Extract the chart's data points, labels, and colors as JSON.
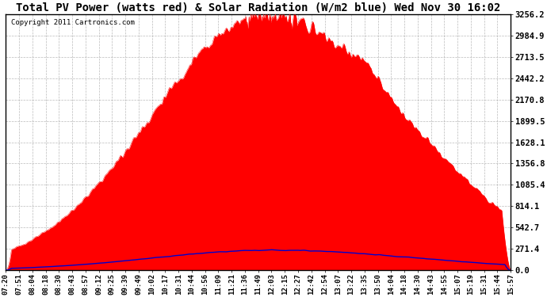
{
  "title": "Total PV Power (watts red) & Solar Radiation (W/m2 blue) Wed Nov 30 16:02",
  "copyright_text": "Copyright 2011 Cartronics.com",
  "ymax": 3256.2,
  "yticks": [
    0.0,
    271.4,
    542.7,
    814.1,
    1085.4,
    1356.8,
    1628.1,
    1899.5,
    2170.8,
    2442.2,
    2713.5,
    2984.9,
    3256.2
  ],
  "xtick_labels": [
    "07:20",
    "07:51",
    "08:04",
    "08:18",
    "08:30",
    "08:43",
    "08:57",
    "09:12",
    "09:25",
    "09:39",
    "09:49",
    "10:02",
    "10:17",
    "10:31",
    "10:44",
    "10:56",
    "11:09",
    "11:21",
    "11:36",
    "11:49",
    "12:03",
    "12:15",
    "12:27",
    "12:42",
    "12:54",
    "13:07",
    "13:22",
    "13:35",
    "13:50",
    "14:04",
    "14:18",
    "14:30",
    "14:43",
    "14:55",
    "15:07",
    "15:19",
    "15:31",
    "15:44",
    "15:57"
  ],
  "fill_color": "#FF0000",
  "line_color": "#0000CD",
  "bg_color": "#FFFFFF",
  "grid_color": "#AAAAAA",
  "title_fontsize": 10,
  "copyright_fontsize": 6.5,
  "tick_fontsize": 6.5,
  "ytick_fontsize": 7.5
}
